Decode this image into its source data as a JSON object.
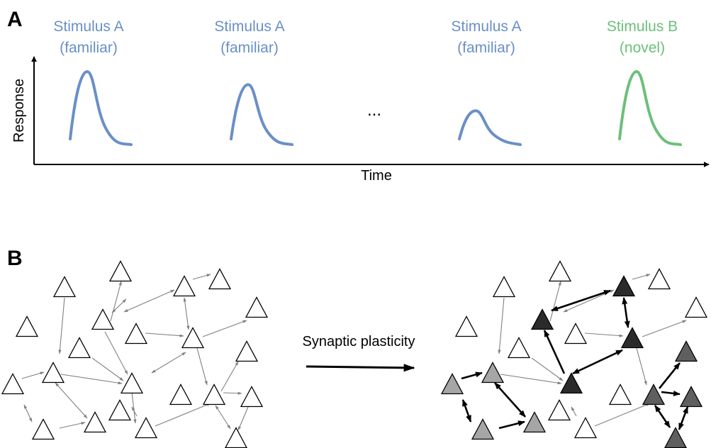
{
  "panel_a": {
    "label": "A",
    "y_axis_label": "Response",
    "x_axis_label": "Time",
    "ellipsis": "...",
    "colors": {
      "familiar": "#6a8fc7",
      "novel": "#6dbf7a"
    },
    "stimuli": [
      {
        "line1": "Stimulus A",
        "line2": "(familiar)",
        "kind": "familiar",
        "amplitude": 1.0
      },
      {
        "line1": "Stimulus A",
        "line2": "(familiar)",
        "kind": "familiar",
        "amplitude": 0.81
      },
      {
        "line1": "Stimulus A",
        "line2": "(familiar)",
        "kind": "familiar",
        "amplitude": 0.43
      },
      {
        "line1": "Stimulus B",
        "line2": "(novel)",
        "kind": "novel",
        "amplitude": 1.0
      }
    ]
  },
  "panel_b": {
    "label": "B",
    "arrow_label": "Synaptic plasticity",
    "colors": {
      "light": "#a6a6a6",
      "medium": "#5f5f5f",
      "dark": "#2b2b2b",
      "outline": "#000000",
      "thin_arrow": "#808080",
      "strong_arrow": "#000000"
    }
  }
}
